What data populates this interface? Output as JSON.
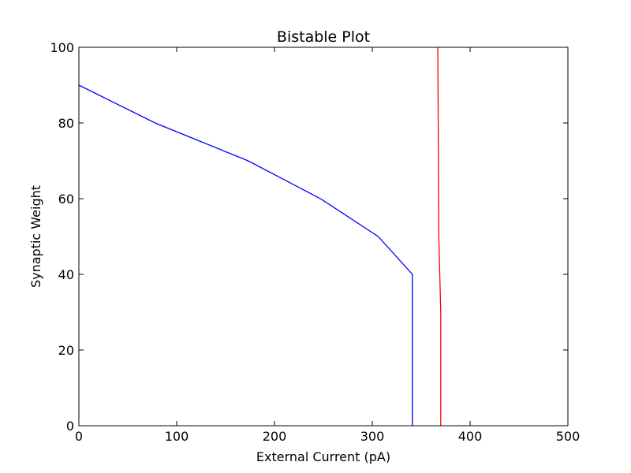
{
  "chart_data": {
    "type": "line",
    "title": "Bistable Plot",
    "xlabel": "External Current (pA)",
    "ylabel": "Synaptic Weight",
    "xlim": [
      0,
      500
    ],
    "ylim": [
      0,
      100
    ],
    "xticks": [
      0,
      100,
      200,
      300,
      400,
      500
    ],
    "yticks": [
      0,
      20,
      40,
      60,
      80,
      100
    ],
    "grid": false,
    "series": [
      {
        "name": "blue-curve",
        "color": "#0000ff",
        "x": [
          0,
          78,
          173,
          247,
          306,
          341,
          341
        ],
        "y": [
          90,
          80,
          70,
          60,
          50,
          40,
          0
        ]
      },
      {
        "name": "red-curve",
        "color": "#ff0000",
        "x": [
          367,
          368,
          370,
          370
        ],
        "y": [
          100,
          50,
          30,
          0
        ]
      }
    ]
  }
}
